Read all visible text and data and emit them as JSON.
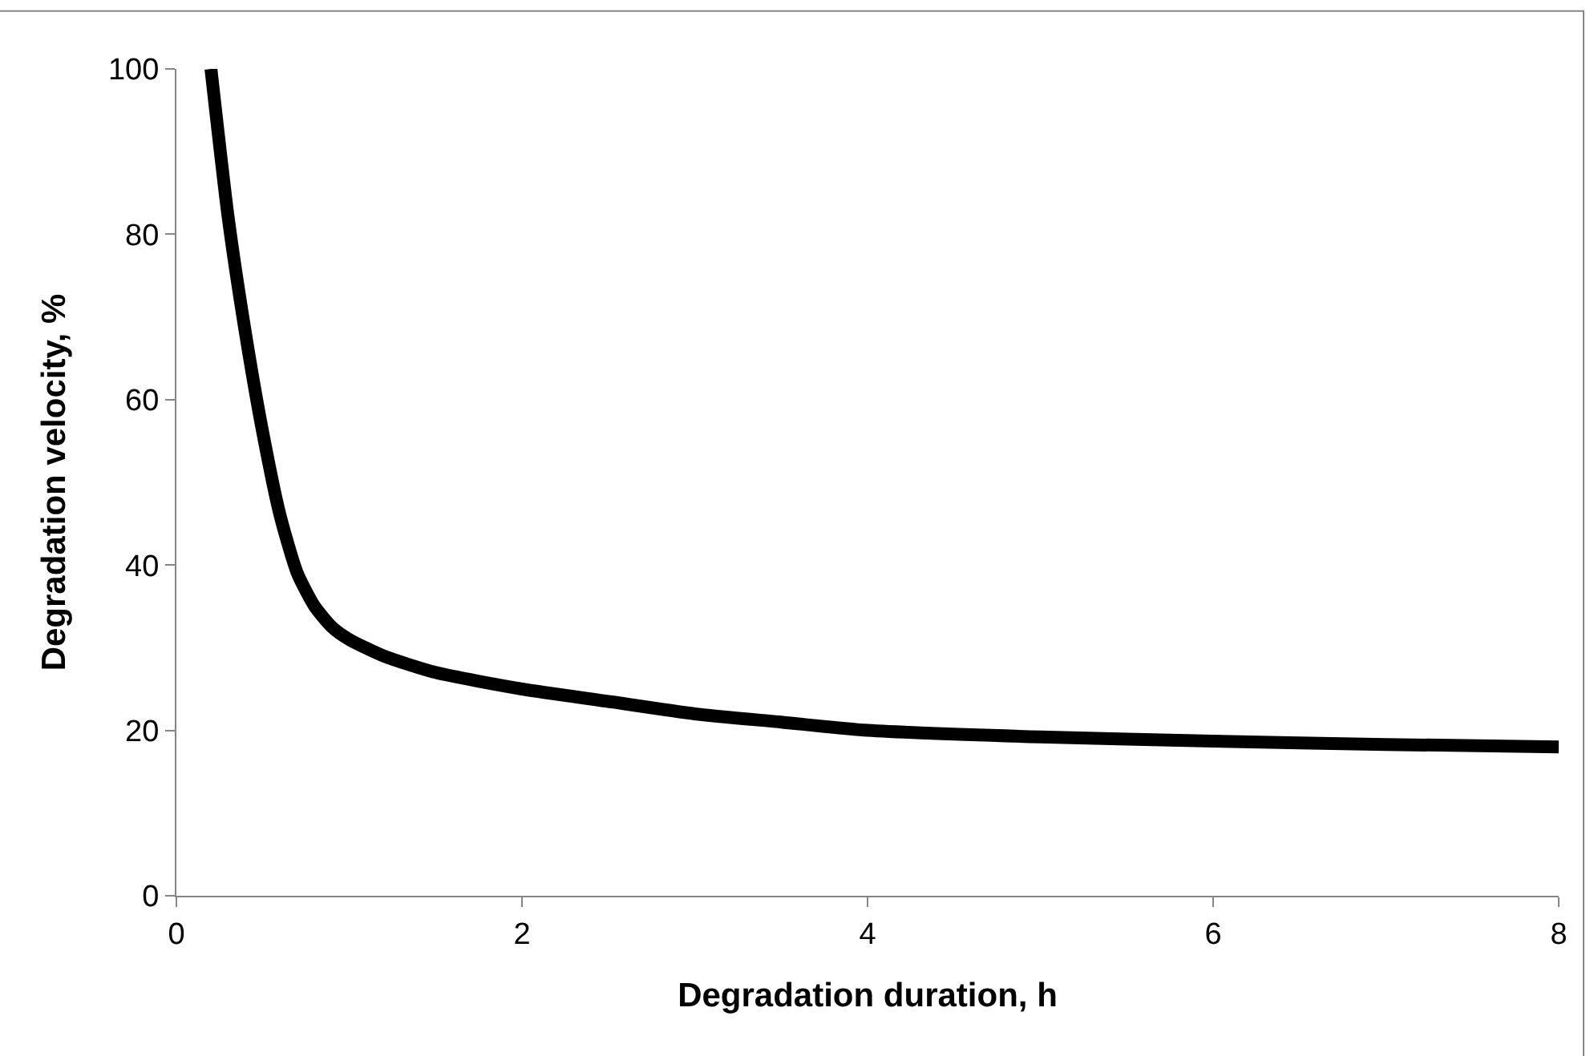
{
  "chart_data": {
    "type": "line",
    "xlabel": "Degradation duration, h",
    "ylabel": "Degradation velocity, %",
    "x": [
      0.2,
      0.3,
      0.4,
      0.5,
      0.6,
      0.7,
      0.8,
      0.9,
      1.0,
      1.2,
      1.5,
      2,
      2.5,
      3,
      3.5,
      4,
      5,
      6,
      7,
      8
    ],
    "series": [
      {
        "color": "#000000",
        "values": [
          100,
          82,
          68,
          56,
          46,
          39,
          35,
          32.5,
          31,
          29,
          27,
          25,
          23.5,
          22,
          21,
          20,
          19.2,
          18.7,
          18.3,
          18
        ]
      }
    ],
    "xlim": [
      0,
      8
    ],
    "xticks": [
      0,
      2,
      4,
      6,
      8
    ],
    "ylim": [
      0,
      100
    ],
    "yticks": [
      0,
      20,
      40,
      60,
      80,
      100
    ],
    "grid": false,
    "marker": "none",
    "line_style": "solid"
  }
}
